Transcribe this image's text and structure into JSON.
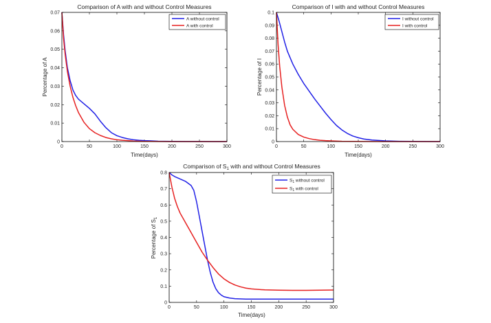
{
  "chart_data": [
    {
      "type": "line",
      "title": "Comparison of A with and without Control Measures",
      "xlabel": "Time(days)",
      "ylabel": "Percentage of A",
      "xlim": [
        0,
        300
      ],
      "ylim": [
        0,
        0.07
      ],
      "xticks": [
        0,
        50,
        100,
        150,
        200,
        250,
        300
      ],
      "yticks": [
        0,
        0.01,
        0.02,
        0.03,
        0.04,
        0.05,
        0.06,
        0.07
      ],
      "xtick_labels": [
        "0",
        "50",
        "100",
        "150",
        "200",
        "250",
        "300"
      ],
      "ytick_labels": [
        "0",
        "0.01",
        "0.02",
        "0.03",
        "0.04",
        "0.05",
        "0.06",
        "0.07"
      ],
      "legend": "top-right",
      "series": [
        {
          "name": "A without control",
          "color": "#1f1fe6",
          "x": [
            0,
            3,
            6,
            10,
            15,
            20,
            25,
            30,
            40,
            50,
            60,
            70,
            80,
            90,
            100,
            110,
            120,
            130,
            140,
            150,
            160,
            175,
            200,
            225,
            250,
            275,
            300
          ],
          "y": [
            0.07,
            0.058,
            0.049,
            0.04,
            0.033,
            0.028,
            0.025,
            0.023,
            0.0205,
            0.018,
            0.015,
            0.011,
            0.0075,
            0.0048,
            0.0032,
            0.0022,
            0.0015,
            0.001,
            0.0007,
            0.0005,
            0.0004,
            0.0002,
            0.0001,
            5e-05,
            3e-05,
            1e-05,
            0.0
          ]
        },
        {
          "name": "A with control",
          "color": "#e61f1f",
          "x": [
            0,
            3,
            6,
            10,
            15,
            20,
            25,
            30,
            40,
            50,
            60,
            70,
            80,
            90,
            100,
            110,
            120,
            130,
            140,
            150,
            160,
            175,
            200,
            225,
            250,
            275,
            300
          ],
          "y": [
            0.07,
            0.056,
            0.047,
            0.038,
            0.03,
            0.024,
            0.0195,
            0.0158,
            0.0105,
            0.007,
            0.0048,
            0.0033,
            0.0022,
            0.0015,
            0.001,
            0.0007,
            0.0005,
            0.0003,
            0.0002,
            0.0001,
            0.0001,
            5e-05,
            2e-05,
            1e-05,
            0.0,
            0.0,
            0.0
          ]
        }
      ]
    },
    {
      "type": "line",
      "title": "Comparison of I with and without Control Measures",
      "xlabel": "Time(days)",
      "ylabel": "Percentage of I",
      "xlim": [
        0,
        300
      ],
      "ylim": [
        0,
        0.1
      ],
      "xticks": [
        0,
        50,
        100,
        150,
        200,
        250,
        300
      ],
      "yticks": [
        0,
        0.01,
        0.02,
        0.03,
        0.04,
        0.05,
        0.06,
        0.07,
        0.08,
        0.09,
        0.1
      ],
      "xtick_labels": [
        "0",
        "50",
        "100",
        "150",
        "200",
        "250",
        "300"
      ],
      "ytick_labels": [
        "0",
        "0.01",
        "0.02",
        "0.03",
        "0.04",
        "0.05",
        "0.06",
        "0.07",
        "0.08",
        "0.09",
        "0.1"
      ],
      "legend": "top-right",
      "series": [
        {
          "name": "I without control",
          "color": "#1f1fe6",
          "x": [
            0,
            5,
            10,
            15,
            20,
            30,
            40,
            50,
            60,
            70,
            80,
            90,
            100,
            110,
            120,
            130,
            140,
            150,
            160,
            175,
            200,
            225,
            250,
            275,
            300
          ],
          "y": [
            0.1,
            0.093,
            0.085,
            0.077,
            0.07,
            0.06,
            0.052,
            0.045,
            0.039,
            0.033,
            0.0275,
            0.022,
            0.017,
            0.0125,
            0.009,
            0.0063,
            0.0043,
            0.003,
            0.002,
            0.0012,
            0.0005,
            0.0002,
            0.0001,
            5e-05,
            0.0
          ]
        },
        {
          "name": "I with control",
          "color": "#e61f1f",
          "x": [
            0,
            3,
            6,
            10,
            15,
            20,
            25,
            30,
            40,
            50,
            60,
            70,
            80,
            90,
            100,
            120,
            140,
            160,
            200,
            250,
            300
          ],
          "y": [
            0.1,
            0.075,
            0.058,
            0.042,
            0.028,
            0.019,
            0.013,
            0.0095,
            0.0055,
            0.0035,
            0.0023,
            0.0015,
            0.001,
            0.0007,
            0.0005,
            0.0002,
            0.0001,
            5e-05,
            0.0,
            0.0,
            0.0
          ]
        }
      ]
    },
    {
      "type": "line",
      "title_prefix": "Comparison of S",
      "title_sub": "1",
      "title_suffix": " with and without Control Measures",
      "xlabel": "Time(days)",
      "ylabel_prefix": "Percentage of S",
      "ylabel_sub": "1",
      "xlim": [
        0,
        300
      ],
      "ylim": [
        0,
        0.8
      ],
      "xticks": [
        0,
        50,
        100,
        150,
        200,
        250,
        300
      ],
      "yticks": [
        0,
        0.1,
        0.2,
        0.3,
        0.4,
        0.5,
        0.6,
        0.7,
        0.8
      ],
      "xtick_labels": [
        "0",
        "50",
        "100",
        "150",
        "200",
        "250",
        "300"
      ],
      "ytick_labels": [
        "0",
        "0.1",
        "0.2",
        "0.3",
        "0.4",
        "0.5",
        "0.6",
        "0.7",
        "0.8"
      ],
      "legend": "top-right",
      "series": [
        {
          "name_prefix": "S",
          "name_sub": "1",
          "name_suffix": " without control",
          "color": "#1f1fe6",
          "x": [
            0,
            5,
            10,
            20,
            30,
            40,
            45,
            50,
            55,
            60,
            65,
            70,
            75,
            80,
            85,
            90,
            95,
            100,
            110,
            120,
            140,
            160,
            200,
            250,
            300
          ],
          "y": [
            0.8,
            0.785,
            0.775,
            0.76,
            0.745,
            0.72,
            0.69,
            0.62,
            0.53,
            0.44,
            0.35,
            0.26,
            0.185,
            0.125,
            0.085,
            0.06,
            0.045,
            0.035,
            0.027,
            0.023,
            0.02,
            0.02,
            0.02,
            0.02,
            0.02
          ]
        },
        {
          "name_prefix": "S",
          "name_sub": "1",
          "name_suffix": " with control",
          "color": "#e61f1f",
          "x": [
            0,
            5,
            10,
            15,
            20,
            30,
            40,
            50,
            60,
            70,
            80,
            90,
            100,
            110,
            120,
            130,
            140,
            150,
            175,
            200,
            225,
            250,
            275,
            300
          ],
          "y": [
            0.8,
            0.71,
            0.64,
            0.59,
            0.55,
            0.49,
            0.43,
            0.37,
            0.31,
            0.26,
            0.215,
            0.175,
            0.145,
            0.123,
            0.107,
            0.096,
            0.088,
            0.083,
            0.077,
            0.075,
            0.074,
            0.074,
            0.075,
            0.076
          ]
        }
      ]
    }
  ]
}
